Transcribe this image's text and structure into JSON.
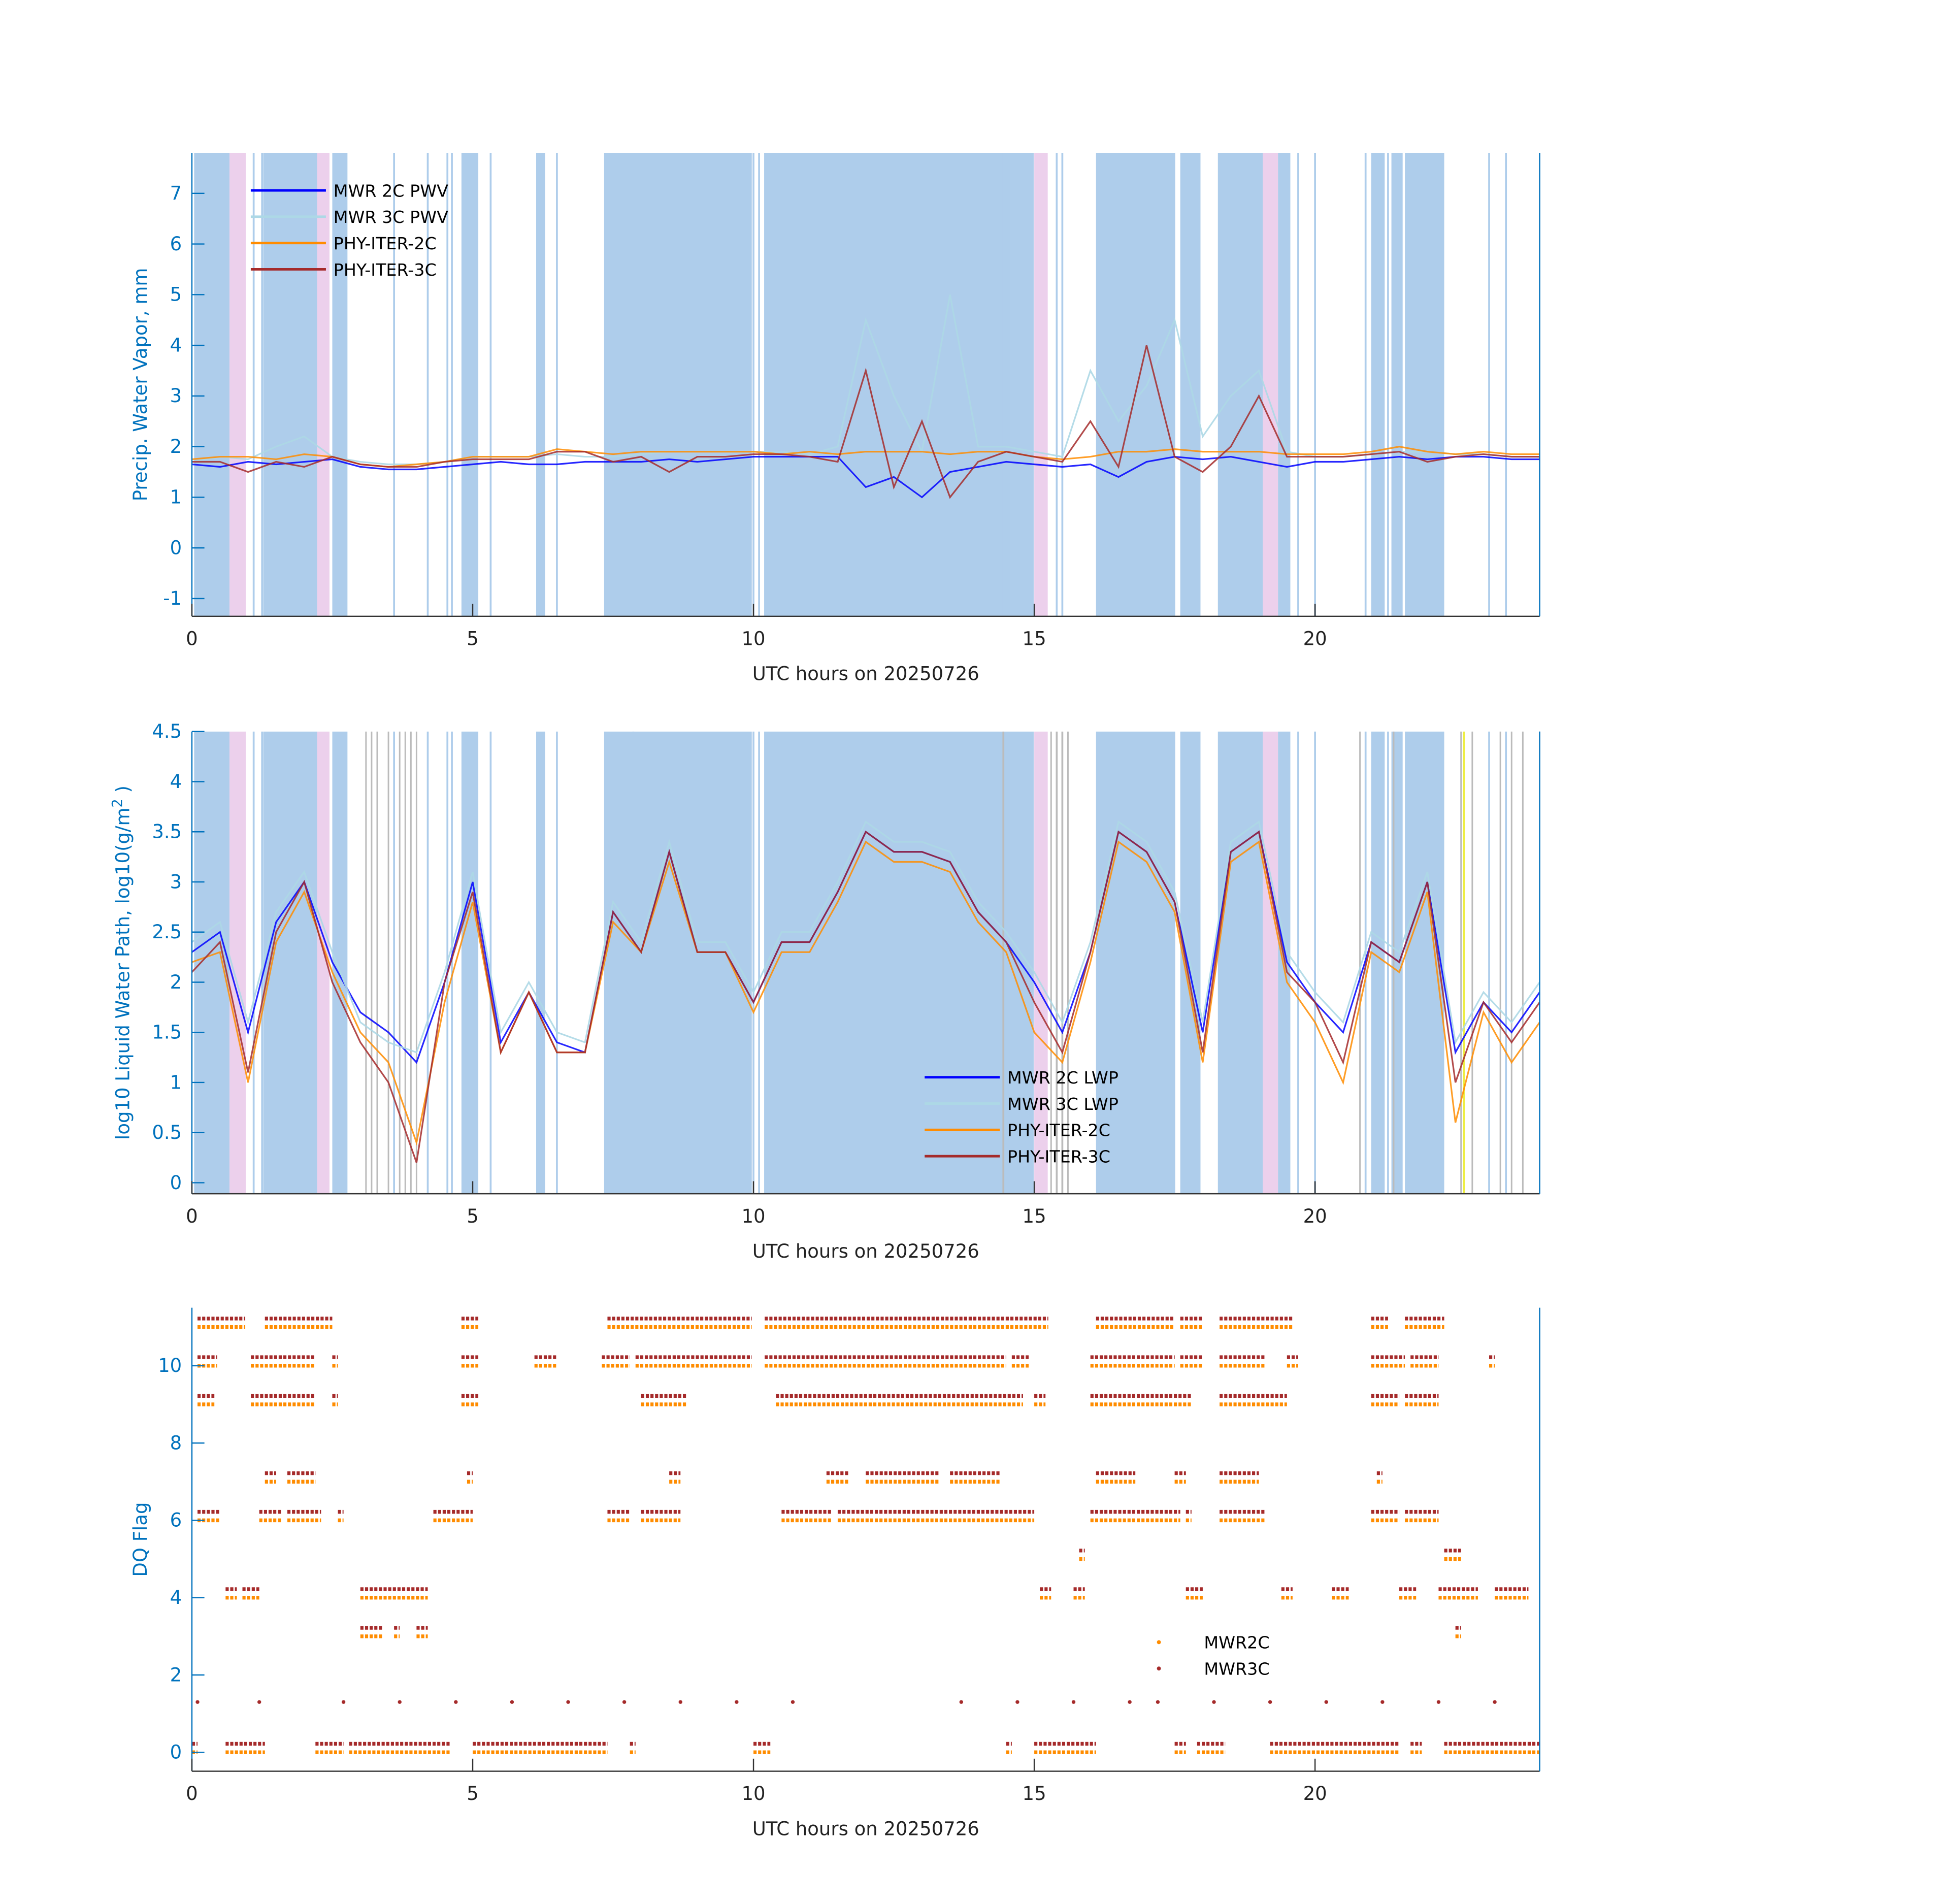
{
  "chart_data": [
    {
      "type": "line",
      "xlabel": "UTC hours on 20250726",
      "ylabel": "Precip. Water Vapor, mm",
      "xlim": [
        0,
        24
      ],
      "ylim": [
        -1.35,
        7.8
      ],
      "xticks": [
        0,
        5,
        10,
        15,
        20
      ],
      "yticks": [
        -1,
        0,
        1,
        2,
        3,
        4,
        5,
        6,
        7
      ],
      "legend_position": "top-left",
      "x_step_hours": 0.5,
      "series": [
        {
          "name": "MWR 2C PWV",
          "color": "#0000ff",
          "values": [
            1.65,
            1.6,
            1.7,
            1.65,
            1.7,
            1.75,
            1.6,
            1.55,
            1.55,
            1.6,
            1.65,
            1.7,
            1.65,
            1.65,
            1.7,
            1.7,
            1.7,
            1.75,
            1.7,
            1.75,
            1.8,
            1.8,
            1.8,
            1.8,
            1.2,
            1.4,
            1.0,
            1.5,
            1.6,
            1.7,
            1.65,
            1.6,
            1.65,
            1.4,
            1.7,
            1.8,
            1.75,
            1.8,
            1.7,
            1.6,
            1.7,
            1.7,
            1.75,
            1.8,
            1.75,
            1.8,
            1.8,
            1.75,
            1.75
          ]
        },
        {
          "name": "MWR 3C PWV",
          "color": "#add8e6",
          "values": [
            1.7,
            1.8,
            1.75,
            2.0,
            2.2,
            1.8,
            1.7,
            1.65,
            1.65,
            1.7,
            1.8,
            1.8,
            1.8,
            1.85,
            1.8,
            1.8,
            1.85,
            1.9,
            1.9,
            1.9,
            1.9,
            1.9,
            1.85,
            2.0,
            4.5,
            3.0,
            1.9,
            5.0,
            2.0,
            2.0,
            1.9,
            1.8,
            3.5,
            2.5,
            3.2,
            4.5,
            2.2,
            3.0,
            3.5,
            1.9,
            1.8,
            1.8,
            1.85,
            1.9,
            1.9,
            1.85,
            1.85,
            1.8,
            1.8
          ]
        },
        {
          "name": "PHY-ITER-2C",
          "color": "#ff8c00",
          "values": [
            1.75,
            1.8,
            1.8,
            1.75,
            1.85,
            1.8,
            1.65,
            1.6,
            1.65,
            1.7,
            1.8,
            1.8,
            1.8,
            1.95,
            1.9,
            1.85,
            1.9,
            1.9,
            1.9,
            1.9,
            1.9,
            1.85,
            1.9,
            1.85,
            1.9,
            1.9,
            1.9,
            1.85,
            1.9,
            1.9,
            1.8,
            1.75,
            1.8,
            1.9,
            1.9,
            1.95,
            1.9,
            1.9,
            1.9,
            1.85,
            1.85,
            1.85,
            1.9,
            2.0,
            1.9,
            1.85,
            1.9,
            1.85,
            1.85
          ]
        },
        {
          "name": "PHY-ITER-3C",
          "color": "#a52a2a",
          "values": [
            1.7,
            1.7,
            1.5,
            1.7,
            1.6,
            1.8,
            1.65,
            1.6,
            1.6,
            1.7,
            1.75,
            1.75,
            1.75,
            1.9,
            1.9,
            1.7,
            1.8,
            1.5,
            1.8,
            1.8,
            1.85,
            1.85,
            1.8,
            1.7,
            3.5,
            1.2,
            2.5,
            1.0,
            1.7,
            1.9,
            1.8,
            1.7,
            2.5,
            1.6,
            4.0,
            1.8,
            1.5,
            2.0,
            3.0,
            1.8,
            1.8,
            1.8,
            1.85,
            1.9,
            1.7,
            1.8,
            1.85,
            1.8,
            1.8
          ]
        }
      ]
    },
    {
      "type": "line",
      "xlabel": "UTC hours on 20250726",
      "ylabel": "log10 Liquid Water Path, log10(g/m",
      "ylabel_sup": "2",
      "ylabel_end": " )",
      "xlim": [
        0,
        24
      ],
      "ylim": [
        -0.11,
        4.5
      ],
      "xticks": [
        0,
        5,
        10,
        15,
        20
      ],
      "yticks": [
        0,
        0.5,
        1,
        1.5,
        2,
        2.5,
        3,
        3.5,
        4,
        4.5
      ],
      "legend_position": "bottom-right",
      "x_step_hours": 0.5,
      "series": [
        {
          "name": "MWR 2C LWP",
          "color": "#0000ff",
          "values": [
            2.3,
            2.5,
            1.5,
            2.6,
            3.0,
            2.2,
            1.7,
            1.5,
            1.2,
            2.0,
            3.0,
            1.4,
            1.9,
            1.4,
            1.3,
            2.7,
            2.3,
            3.3,
            2.3,
            2.3,
            1.8,
            2.4,
            2.4,
            2.9,
            3.5,
            3.3,
            3.3,
            3.2,
            2.7,
            2.4,
            2.0,
            1.5,
            2.3,
            3.5,
            3.3,
            2.8,
            1.5,
            3.3,
            3.5,
            2.2,
            1.8,
            1.5,
            2.4,
            2.2,
            3.0,
            1.3,
            1.8,
            1.5,
            1.9
          ]
        },
        {
          "name": "MWR 3C LWP",
          "color": "#add8e6",
          "values": [
            2.4,
            2.6,
            1.6,
            2.7,
            3.1,
            2.3,
            1.6,
            1.4,
            1.3,
            2.1,
            3.1,
            1.5,
            2.0,
            1.5,
            1.4,
            2.8,
            2.4,
            3.4,
            2.4,
            2.4,
            1.9,
            2.5,
            2.5,
            3.0,
            3.6,
            3.4,
            3.4,
            3.3,
            2.8,
            2.5,
            2.1,
            1.6,
            2.4,
            3.6,
            3.4,
            2.9,
            1.6,
            3.4,
            3.6,
            2.3,
            1.9,
            1.6,
            2.5,
            2.3,
            3.1,
            1.4,
            1.9,
            1.6,
            2.0
          ]
        },
        {
          "name": "PHY-ITER-2C",
          "color": "#ff8c00",
          "values": [
            2.2,
            2.3,
            1.0,
            2.4,
            2.9,
            2.1,
            1.5,
            1.2,
            0.4,
            1.8,
            2.8,
            1.3,
            1.9,
            1.3,
            1.3,
            2.6,
            2.3,
            3.2,
            2.3,
            2.3,
            1.7,
            2.3,
            2.3,
            2.8,
            3.4,
            3.2,
            3.2,
            3.1,
            2.6,
            2.3,
            1.5,
            1.2,
            2.2,
            3.4,
            3.2,
            2.7,
            1.2,
            3.2,
            3.4,
            2.0,
            1.6,
            1.0,
            2.3,
            2.1,
            2.9,
            0.6,
            1.7,
            1.2,
            1.6
          ]
        },
        {
          "name": "PHY-ITER-3C",
          "color": "#a52a2a",
          "values": [
            2.1,
            2.4,
            1.1,
            2.5,
            3.0,
            2.0,
            1.4,
            1.0,
            0.2,
            2.0,
            2.9,
            1.3,
            1.9,
            1.3,
            1.3,
            2.7,
            2.3,
            3.3,
            2.3,
            2.3,
            1.8,
            2.4,
            2.4,
            2.9,
            3.5,
            3.3,
            3.3,
            3.2,
            2.7,
            2.4,
            1.8,
            1.3,
            2.3,
            3.5,
            3.3,
            2.8,
            1.3,
            3.3,
            3.5,
            2.1,
            1.8,
            1.2,
            2.4,
            2.2,
            3.0,
            1.0,
            1.8,
            1.4,
            1.8
          ]
        }
      ]
    },
    {
      "type": "scatter",
      "xlabel": "UTC hours on 20250726",
      "ylabel": "DQ Flag",
      "xlim": [
        0,
        24
      ],
      "ylim": [
        -0.49,
        11.5
      ],
      "xticks": [
        0,
        5,
        10,
        15,
        20
      ],
      "yticks": [
        0,
        2,
        4,
        6,
        8,
        10
      ],
      "legend_position": "bottom-right",
      "series": [
        {
          "name": "MWR2C",
          "color": "#ff8c00",
          "offset": 0
        },
        {
          "name": "MWR3C",
          "color": "#a52a2a",
          "offset": 0.22
        }
      ],
      "flag_segments": [
        {
          "flag": 11,
          "ranges": [
            [
              0.1,
              0.95
            ],
            [
              1.3,
              2.5
            ],
            [
              4.8,
              5.1
            ],
            [
              7.4,
              9.97
            ],
            [
              10.2,
              15.25
            ],
            [
              16.1,
              17.5
            ],
            [
              17.6,
              18.0
            ],
            [
              18.3,
              19.6
            ],
            [
              21.0,
              21.3
            ],
            [
              21.6,
              22.3
            ]
          ]
        },
        {
          "flag": 10,
          "ranges": [
            [
              0.1,
              0.45
            ],
            [
              1.05,
              2.2
            ],
            [
              2.5,
              2.6
            ],
            [
              4.8,
              5.1
            ],
            [
              6.1,
              6.5
            ],
            [
              7.3,
              7.8
            ],
            [
              7.9,
              9.97
            ],
            [
              10.2,
              14.5
            ],
            [
              14.6,
              14.9
            ],
            [
              16.0,
              17.5
            ],
            [
              17.6,
              18.0
            ],
            [
              18.3,
              19.1
            ],
            [
              19.5,
              19.7
            ],
            [
              21.0,
              21.6
            ],
            [
              21.7,
              22.2
            ],
            [
              23.1,
              23.2
            ]
          ]
        },
        {
          "flag": 9,
          "ranges": [
            [
              0.1,
              0.4
            ],
            [
              1.05,
              2.2
            ],
            [
              2.5,
              2.6
            ],
            [
              4.8,
              5.1
            ],
            [
              8.0,
              8.8
            ],
            [
              10.4,
              14.8
            ],
            [
              15.0,
              15.2
            ],
            [
              16.0,
              17.8
            ],
            [
              18.3,
              19.5
            ],
            [
              21.0,
              21.5
            ],
            [
              21.6,
              22.2
            ]
          ]
        },
        {
          "flag": 7,
          "ranges": [
            [
              1.3,
              1.5
            ],
            [
              1.7,
              2.2
            ],
            [
              4.9,
              5.0
            ],
            [
              8.5,
              8.7
            ],
            [
              11.3,
              11.7
            ],
            [
              12.0,
              13.3
            ],
            [
              13.5,
              14.4
            ],
            [
              16.1,
              16.8
            ],
            [
              17.5,
              17.7
            ],
            [
              18.3,
              19.0
            ],
            [
              21.1,
              21.2
            ]
          ]
        },
        {
          "flag": 6,
          "ranges": [
            [
              0.1,
              0.5
            ],
            [
              1.2,
              1.6
            ],
            [
              1.7,
              2.3
            ],
            [
              2.6,
              2.7
            ],
            [
              4.3,
              5.0
            ],
            [
              7.4,
              7.8
            ],
            [
              8.0,
              8.7
            ],
            [
              10.5,
              11.4
            ],
            [
              11.5,
              15.0
            ],
            [
              16.0,
              17.6
            ],
            [
              17.7,
              17.8
            ],
            [
              18.3,
              19.1
            ],
            [
              21.0,
              21.5
            ],
            [
              21.6,
              22.2
            ]
          ]
        },
        {
          "flag": 5,
          "ranges": [
            [
              15.8,
              15.9
            ],
            [
              22.3,
              22.6
            ]
          ]
        },
        {
          "flag": 4,
          "ranges": [
            [
              0.6,
              0.8
            ],
            [
              0.9,
              1.2
            ],
            [
              3.0,
              4.2
            ],
            [
              15.1,
              15.3
            ],
            [
              15.7,
              15.9
            ],
            [
              17.7,
              18.0
            ],
            [
              19.4,
              19.6
            ],
            [
              20.3,
              20.6
            ],
            [
              21.5,
              21.8
            ],
            [
              22.2,
              22.9
            ],
            [
              23.2,
              23.8
            ]
          ]
        },
        {
          "flag": 3,
          "ranges": [
            [
              3.0,
              3.4
            ],
            [
              3.6,
              3.7
            ],
            [
              4.0,
              4.2
            ],
            [
              22.5,
              22.6
            ]
          ]
        },
        {
          "flag": 0,
          "ranges": [
            [
              0,
              0.1
            ],
            [
              0.6,
              1.3
            ],
            [
              2.2,
              2.7
            ],
            [
              2.8,
              4.6
            ],
            [
              5.0,
              7.4
            ],
            [
              7.8,
              7.9
            ],
            [
              10.0,
              10.3
            ],
            [
              14.5,
              14.6
            ],
            [
              15.0,
              16.1
            ],
            [
              17.5,
              17.7
            ],
            [
              17.9,
              18.4
            ],
            [
              19.2,
              21.5
            ],
            [
              21.7,
              21.9
            ],
            [
              22.3,
              24.0
            ]
          ]
        }
      ],
      "flag1_points_mwr3c": [
        0.1,
        1.2,
        2.7,
        3.7,
        4.7,
        5.7,
        6.7,
        7.7,
        8.7,
        9.7,
        10.7,
        13.7,
        14.7,
        15.7,
        16.7,
        17.2,
        18.2,
        19.2,
        20.2,
        21.2,
        22.2,
        23.2
      ]
    }
  ],
  "bands": {
    "blue_color": "#aecdeb",
    "pink_color": "#ecd0ec",
    "blue": [
      [
        0.04,
        0.67
      ],
      [
        1.27,
        2.23
      ],
      [
        2.5,
        2.77
      ],
      [
        4.8,
        5.1
      ],
      [
        6.13,
        6.29
      ],
      [
        7.34,
        7.87
      ],
      [
        7.87,
        9.97
      ],
      [
        10.19,
        14.99
      ],
      [
        16.1,
        17.51
      ],
      [
        17.6,
        17.96
      ],
      [
        18.27,
        19.07
      ],
      [
        19.34,
        19.56
      ],
      [
        21.0,
        21.24
      ],
      [
        21.36,
        21.56
      ],
      [
        21.6,
        22.3
      ]
    ],
    "pink": [
      [
        0.67,
        0.96
      ],
      [
        2.23,
        2.45
      ],
      [
        15.0,
        15.24
      ],
      [
        19.07,
        19.34
      ]
    ],
    "thin": [
      1.1,
      1.25,
      3.6,
      4.2,
      4.55,
      4.63,
      5.32,
      6.5,
      7.86,
      10.0,
      10.1,
      14.45,
      15.4,
      15.5,
      19.7,
      20.0,
      20.9,
      21.3,
      23.1,
      23.4
    ]
  }
}
